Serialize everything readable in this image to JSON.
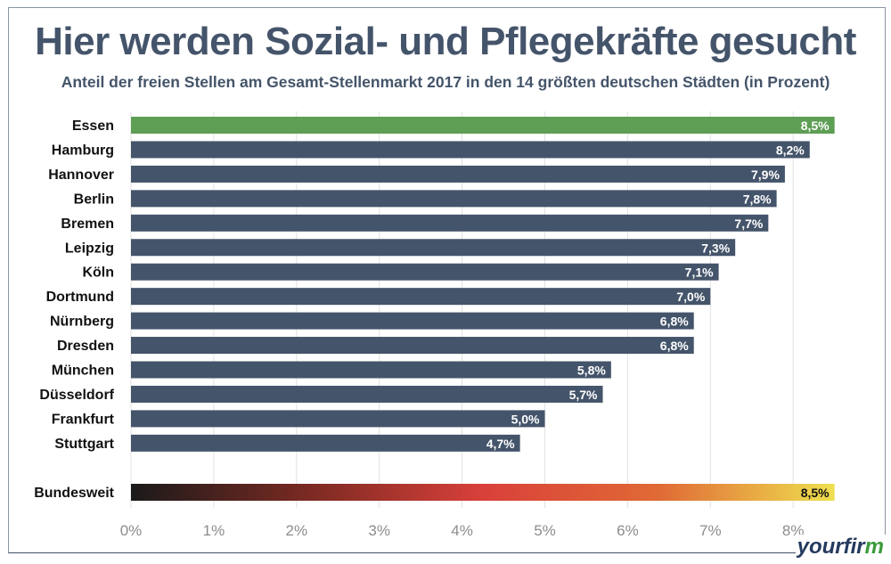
{
  "chart_data": {
    "type": "bar",
    "orientation": "horizontal",
    "title": "Hier werden Sozial- und Pflegekräfte gesucht",
    "subtitle": "Anteil der freien Stellen am Gesamt-Stellenmarkt 2017 in den 14 größten deutschen  Städten (in Prozent)",
    "categories": [
      "Essen",
      "Hamburg",
      "Hannover",
      "Berlin",
      "Bremen",
      "Leipzig",
      "Köln",
      "Dortmund",
      "Nürnberg",
      "Dresden",
      "München",
      "Düsseldorf",
      "Frankfurt",
      "Stuttgart"
    ],
    "values": [
      8.5,
      8.2,
      7.9,
      7.8,
      7.7,
      7.3,
      7.1,
      7.0,
      6.8,
      6.8,
      5.8,
      5.7,
      5.0,
      4.7
    ],
    "labels": [
      "8,5%",
      "8,2%",
      "7,9%",
      "7,8%",
      "7,7%",
      "7,3%",
      "7,1%",
      "7,0%",
      "6,8%",
      "6,8%",
      "5,8%",
      "5,7%",
      "5,0%",
      "4,7%"
    ],
    "national": {
      "category": "Bundesweit",
      "value": 8.5,
      "label": "8,5%"
    },
    "xticks": [
      "0%",
      "1%",
      "2%",
      "3%",
      "4%",
      "5%",
      "6%",
      "7%",
      "8%"
    ],
    "xlim": [
      0,
      8.5
    ],
    "grid": true,
    "colors": {
      "highlight": "#5e9e55",
      "bar": "#44546a",
      "national_gradient": [
        "#1a1a1a",
        "#7a2a22",
        "#d9403a",
        "#e06a35",
        "#efe050"
      ],
      "grid": "#e2e2e2",
      "tick": "#8c8c8c"
    }
  },
  "logo": {
    "text": "yourfir",
    "accent": "m"
  }
}
